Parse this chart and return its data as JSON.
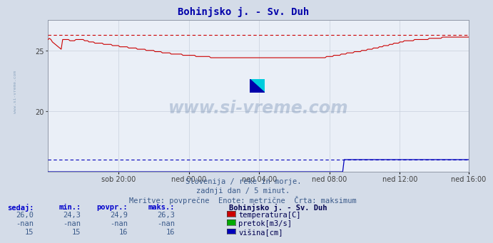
{
  "title": "Bohinjsko j. - Sv. Duh",
  "bg_color": "#d4dce8",
  "plot_bg_color": "#eaeff7",
  "grid_color": "#c8d0dc",
  "xtick_labels": [
    "sob 20:00",
    "ned 00:00",
    "ned 04:00",
    "ned 08:00",
    "ned 12:00",
    "ned 16:00"
  ],
  "xtick_positions": [
    48,
    96,
    144,
    192,
    240,
    287
  ],
  "temp_color": "#cc0000",
  "height_color": "#0000bb",
  "max_temp": 26.3,
  "max_height": 16,
  "ylim": [
    15,
    27.5
  ],
  "yticks": [
    20,
    25
  ],
  "subtitle1": "Slovenija / reke in morje.",
  "subtitle2": "zadnji dan / 5 minut.",
  "subtitle3": "Meritve: povprečne  Enote: metrične  Črta: maksimum",
  "watermark": "www.si-vreme.com",
  "table_headers": [
    "sedaj:",
    "min.:",
    "povpr.:",
    "maks.:"
  ],
  "row1_vals": [
    "26,0",
    "24,3",
    "24,9",
    "26,3"
  ],
  "row2_vals": [
    "-nan",
    "-nan",
    "-nan",
    "-nan"
  ],
  "row3_vals": [
    "15",
    "15",
    "16",
    "16"
  ],
  "legend_title": "Bohinjsko j. - Sv. Duh",
  "legend_items": [
    "temperatura[C]",
    "pretok[m3/s]",
    "višina[cm]"
  ],
  "legend_colors": [
    "#cc0000",
    "#00aa00",
    "#0000bb"
  ]
}
